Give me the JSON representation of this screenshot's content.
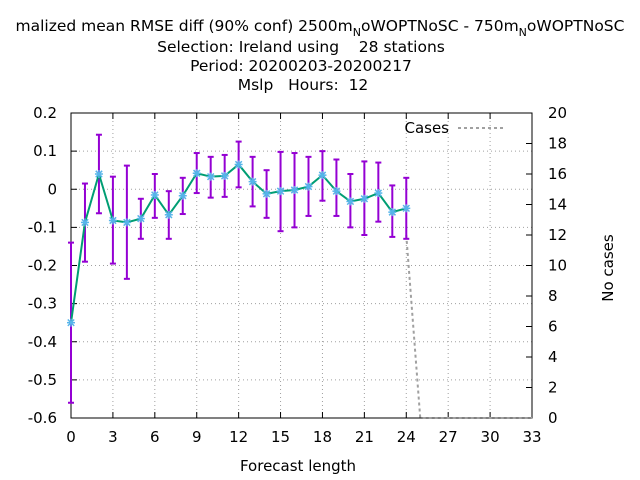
{
  "chart_data": {
    "type": "line",
    "title": {
      "line1_a": "malized mean RMSE diff (90% conf) 2500m",
      "line1_sub1": "N",
      "line1_b": "oWOPTNoSC - 750m",
      "line1_sub2": "N",
      "line1_c": "oWOPTNoSC",
      "line2": "Selection: Ireland using    28 stations",
      "line3": "Period: 20200203-20200217",
      "line4": "Mslp   Hours:  12"
    },
    "xlabel": "Forecast length",
    "y2label": "No cases",
    "xlim": [
      0,
      33
    ],
    "ylim": [
      -0.6,
      0.2
    ],
    "y2lim": [
      0,
      20
    ],
    "x_ticks": [
      0,
      3,
      6,
      9,
      12,
      15,
      18,
      21,
      24,
      27,
      30,
      33
    ],
    "y_ticks": [
      0.2,
      0.1,
      0,
      -0.1,
      -0.2,
      -0.3,
      -0.4,
      -0.5,
      -0.6
    ],
    "y_tick_labels": [
      "0.2",
      "0.1",
      "0",
      "-0.1",
      "-0.2",
      "-0.3",
      "-0.4",
      "-0.5",
      "-0.6"
    ],
    "y2_ticks": [
      0,
      2,
      4,
      6,
      8,
      10,
      12,
      14,
      16,
      18,
      20
    ],
    "grid": true,
    "legend_position": "top-right",
    "series": [
      {
        "name": "",
        "color": "#009e73",
        "marker_color": "#56b4e9",
        "errorbar_color": "#9400d3",
        "x": [
          0,
          1,
          2,
          3,
          4,
          5,
          6,
          7,
          8,
          9,
          10,
          11,
          12,
          13,
          14,
          15,
          16,
          17,
          18,
          19,
          20,
          21,
          22,
          23,
          24
        ],
        "y": [
          -0.35,
          -0.087,
          0.04,
          -0.082,
          -0.087,
          -0.077,
          -0.015,
          -0.067,
          -0.017,
          0.042,
          0.033,
          0.035,
          0.065,
          0.02,
          -0.012,
          -0.005,
          -0.002,
          0.007,
          0.037,
          -0.005,
          -0.032,
          -0.025,
          -0.01,
          -0.06,
          -0.05
        ],
        "y_low": [
          -0.56,
          -0.19,
          -0.063,
          -0.195,
          -0.235,
          -0.13,
          -0.075,
          -0.13,
          -0.065,
          -0.01,
          -0.022,
          -0.02,
          0.005,
          -0.045,
          -0.075,
          -0.11,
          -0.1,
          -0.07,
          -0.03,
          -0.07,
          -0.1,
          -0.12,
          -0.085,
          -0.125,
          -0.13
        ],
        "y_high": [
          -0.14,
          0.015,
          0.143,
          0.033,
          0.062,
          -0.025,
          0.04,
          -0.005,
          0.03,
          0.095,
          0.085,
          0.09,
          0.125,
          0.085,
          0.05,
          0.098,
          0.095,
          0.085,
          0.1,
          0.078,
          0.04,
          0.073,
          0.07,
          0.01,
          0.03
        ]
      },
      {
        "name": "Cases",
        "axis": "y2",
        "color": "#a0a0a0",
        "x": [
          24,
          25,
          26,
          27,
          28,
          29,
          30,
          31,
          32,
          33
        ],
        "y": [
          12,
          0,
          0,
          0,
          0,
          0,
          0,
          0,
          0,
          0
        ]
      }
    ]
  }
}
